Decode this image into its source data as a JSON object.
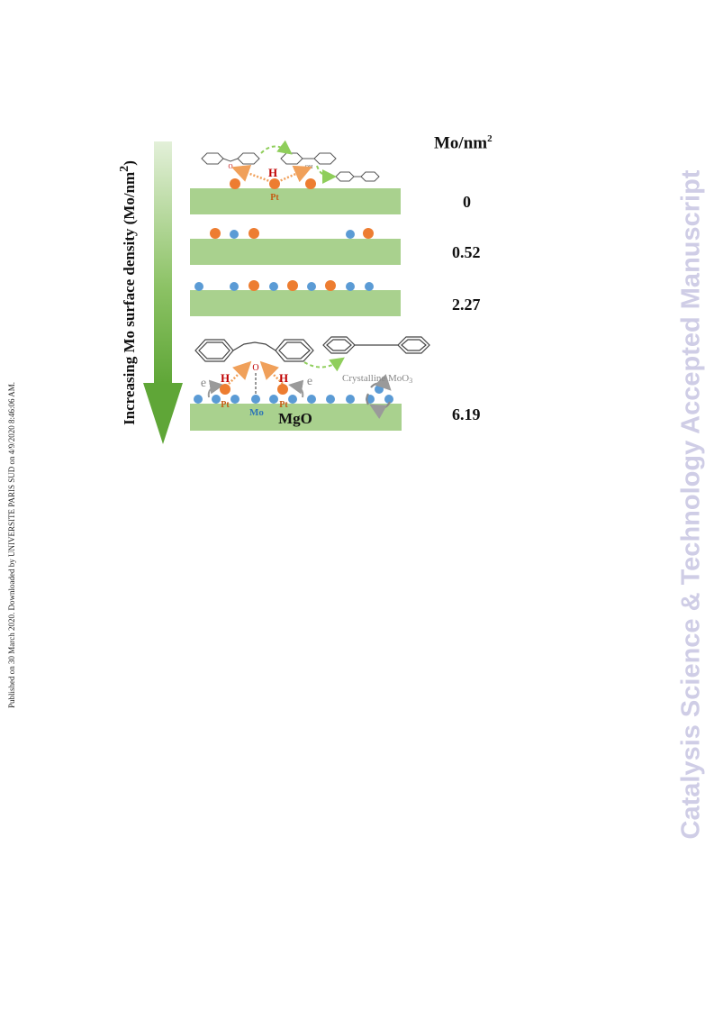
{
  "side_note": "Published on 30 March 2020. Downloaded by UNIVERSITE PARIS SUD on 4/9/2020 8:46:06 AM.",
  "watermark": "Catalysis Science & Technology Accepted Manuscript",
  "figure": {
    "axis_title": "Increasing Mo surface density (Mo/nm",
    "axis_title_sup": "2",
    "axis_title_end": ")",
    "unit_label": "Mo/nm",
    "unit_label_sup": "2",
    "densities": [
      "0",
      "0.52",
      "2.27",
      "6.19"
    ],
    "labels": {
      "pt": "Pt",
      "h": "H",
      "o": "O",
      "oh": "OH",
      "mo": "Mo",
      "mgo": "MgO",
      "electron": "e",
      "crystalline": "Crystalline MoO",
      "crystalline_sub": "3"
    },
    "colors": {
      "support": "#a9d18e",
      "pt_atom": "#ed7d31",
      "mo_atom": "#5b9bd5",
      "h_label": "#c00000",
      "arrow_green": "#70ad47"
    }
  }
}
